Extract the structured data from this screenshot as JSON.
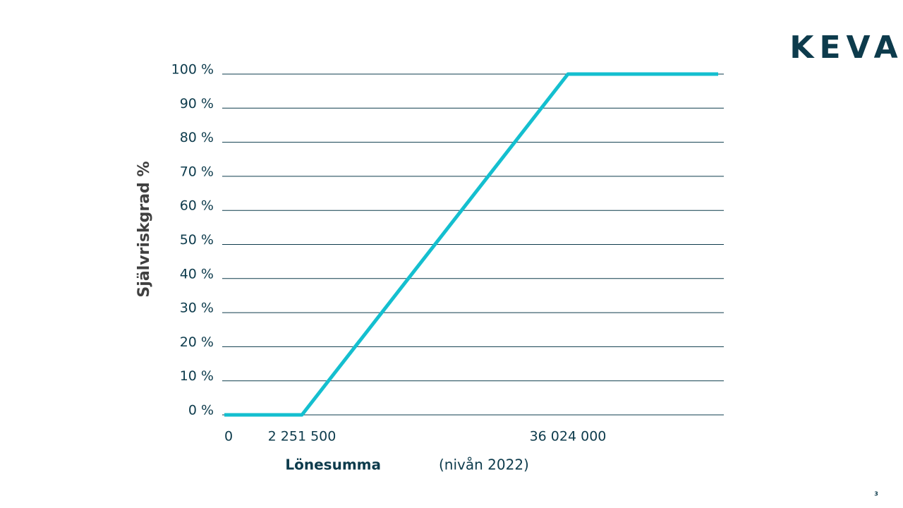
{
  "logo": "KEVA",
  "page_number": "3",
  "chart_data": {
    "type": "line",
    "ylabel": "Självriskgrad %",
    "xlabel": "Lönesumma",
    "xlabel_note": "(nivån 2022)",
    "categories": [
      "0",
      "2 251 500",
      "36 024 000",
      null
    ],
    "values": [
      0,
      0,
      100,
      100
    ],
    "color": "#14bfcf",
    "ylim": [
      0,
      100
    ],
    "yticks": [
      {
        "value": 0,
        "label": "0 %"
      },
      {
        "value": 10,
        "label": "10 %"
      },
      {
        "value": 20,
        "label": "20 %"
      },
      {
        "value": 30,
        "label": "30 %"
      },
      {
        "value": 40,
        "label": "40 %"
      },
      {
        "value": 50,
        "label": "50 %"
      },
      {
        "value": 60,
        "label": "60 %"
      },
      {
        "value": 70,
        "label": "70 %"
      },
      {
        "value": 80,
        "label": "80 %"
      },
      {
        "value": 90,
        "label": "90 %"
      },
      {
        "value": 100,
        "label": "100 %"
      }
    ],
    "grid": true
  }
}
